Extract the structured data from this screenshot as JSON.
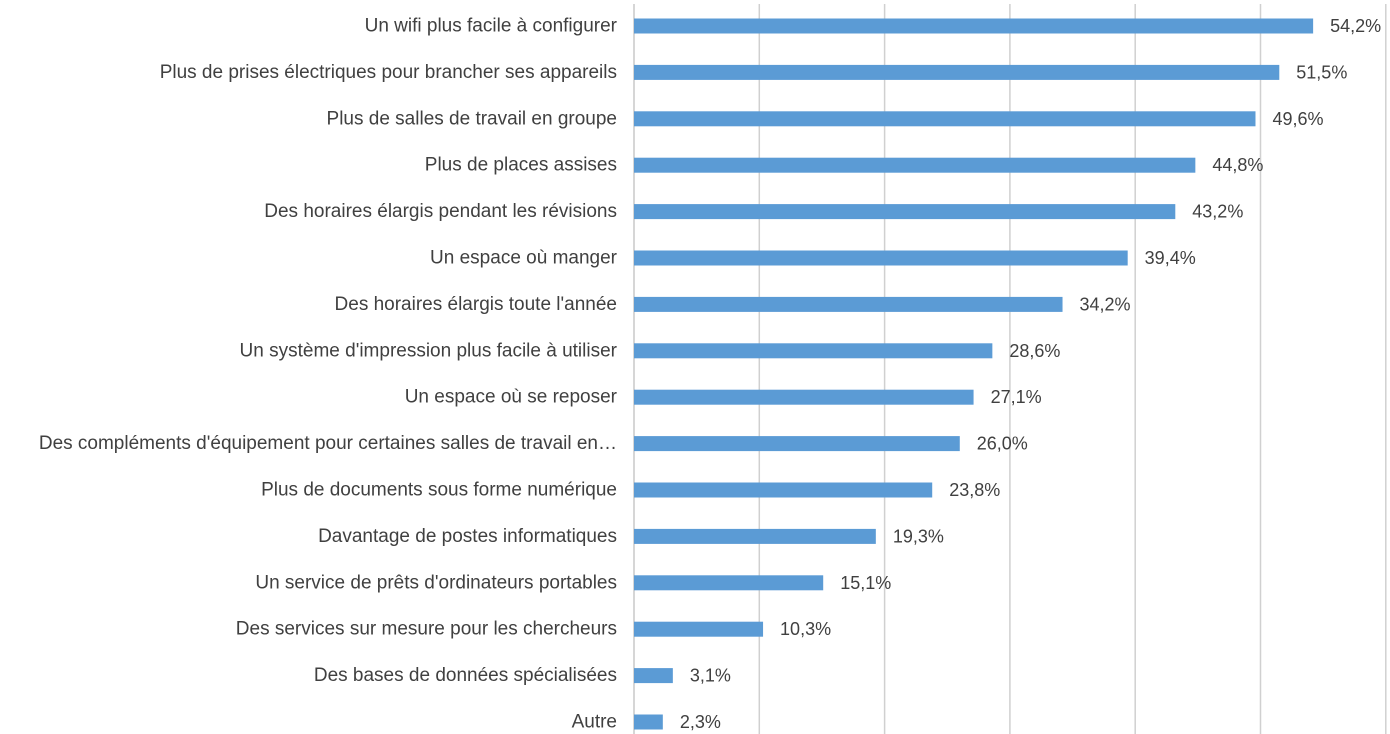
{
  "chart_data": {
    "type": "bar",
    "orientation": "horizontal",
    "title": "",
    "xlabel": "",
    "ylabel": "",
    "value_format": "percent_comma_1",
    "xlim": [
      0,
      60
    ],
    "grid": "vertical",
    "legend": "none",
    "bar_color": "#5b9bd5",
    "categories": [
      "Un wifi plus facile à configurer",
      "Plus de prises électriques pour brancher ses appareils",
      "Plus de salles de travail en groupe",
      "Plus de places assises",
      "Des horaires élargis pendant les révisions",
      "Un espace où manger",
      "Des horaires élargis toute l'année",
      "Un système d'impression plus facile à utiliser",
      "Un espace où se reposer",
      "Des compléments d'équipement pour certaines salles de travail en…",
      "Plus de documents sous forme numérique",
      "Davantage de postes informatiques",
      "Un service de prêts d'ordinateurs portables",
      "Des services sur mesure pour les chercheurs",
      "Des bases de données spécialisées",
      "Autre"
    ],
    "values": [
      54.2,
      51.5,
      49.6,
      44.8,
      43.2,
      39.4,
      34.2,
      28.6,
      27.1,
      26.0,
      23.8,
      19.3,
      15.1,
      10.3,
      3.1,
      2.3
    ],
    "value_labels": [
      "54,2%",
      "51,5%",
      "49,6%",
      "44,8%",
      "43,2%",
      "39,4%",
      "34,2%",
      "28,6%",
      "27,1%",
      "26,0%",
      "23,8%",
      "19,3%",
      "15,1%",
      "10,3%",
      "3,1%",
      "2,3%"
    ]
  }
}
